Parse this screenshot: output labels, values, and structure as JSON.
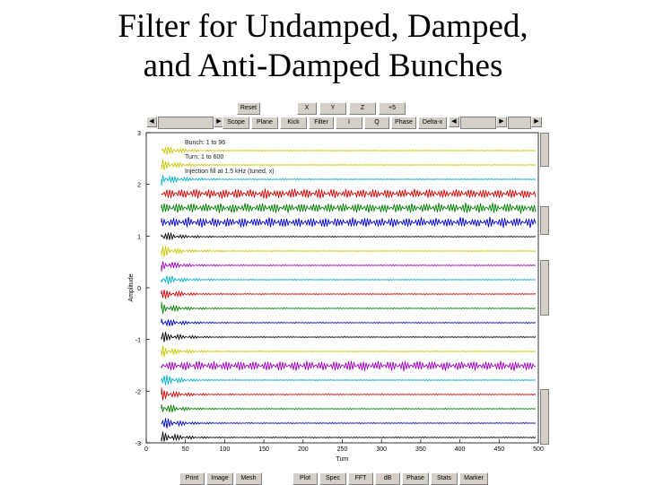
{
  "slide": {
    "title_line1": "Filter  for Undamped, Damped,",
    "title_line2": "and Anti-Damped Bunches"
  },
  "toolbar_top": [
    "Reset",
    "X",
    "Y",
    "Z",
    "+5",
    "+5"
  ],
  "toolbar_mid": [
    "Scope",
    "Plane",
    "Kick",
    "Filter",
    "I",
    "Q",
    "Phase",
    "Delta-x"
  ],
  "toolbar_bottom_left": [
    "Print",
    "Image",
    "Mesh"
  ],
  "toolbar_bottom_right": [
    "Plot",
    "Spec",
    "FFT",
    "dB",
    "Phase",
    "Stats",
    "Marker"
  ],
  "annotations": {
    "bunch": "Bunch: 1 to 96",
    "turn": "Turn: 1 to 600",
    "info": "Injection fill at 1.5 kHz  (tuned,  x)"
  },
  "chart_data": {
    "type": "line",
    "title": "",
    "xlabel": "Turn",
    "ylabel": "Amplitude",
    "x_ticks": [
      "0",
      "50",
      "100",
      "150",
      "200",
      "250",
      "300",
      "350",
      "400",
      "450",
      "500"
    ],
    "y_ticks": [
      "3",
      "2",
      "1",
      "0",
      "-1",
      "-2",
      "-3"
    ],
    "xlim": [
      0,
      500
    ],
    "series_colors": [
      "#c8c800",
      "#00b4c8",
      "#d40000",
      "#008000",
      "#0000d0",
      "#000000",
      "#a000c0"
    ],
    "traces": [
      {
        "color": "#c8c800",
        "mode": "damped"
      },
      {
        "color": "#c8c800",
        "mode": "damped"
      },
      {
        "color": "#00b4c8",
        "mode": "damped"
      },
      {
        "color": "#d40000",
        "mode": "undamped"
      },
      {
        "color": "#008000",
        "mode": "undamped"
      },
      {
        "color": "#0000d0",
        "mode": "undamped"
      },
      {
        "color": "#000000",
        "mode": "damped"
      },
      {
        "color": "#c8c800",
        "mode": "damped"
      },
      {
        "color": "#a000c0",
        "mode": "damped"
      },
      {
        "color": "#00b4c8",
        "mode": "damped"
      },
      {
        "color": "#d40000",
        "mode": "damped"
      },
      {
        "color": "#008000",
        "mode": "damped"
      },
      {
        "color": "#0000d0",
        "mode": "damped"
      },
      {
        "color": "#000000",
        "mode": "damped"
      },
      {
        "color": "#c8c800",
        "mode": "damped"
      },
      {
        "color": "#a000c0",
        "mode": "undamped"
      },
      {
        "color": "#00b4c8",
        "mode": "damped"
      },
      {
        "color": "#d40000",
        "mode": "damped"
      },
      {
        "color": "#008000",
        "mode": "damped"
      },
      {
        "color": "#0000d0",
        "mode": "damped"
      },
      {
        "color": "#000000",
        "mode": "damped"
      }
    ]
  }
}
